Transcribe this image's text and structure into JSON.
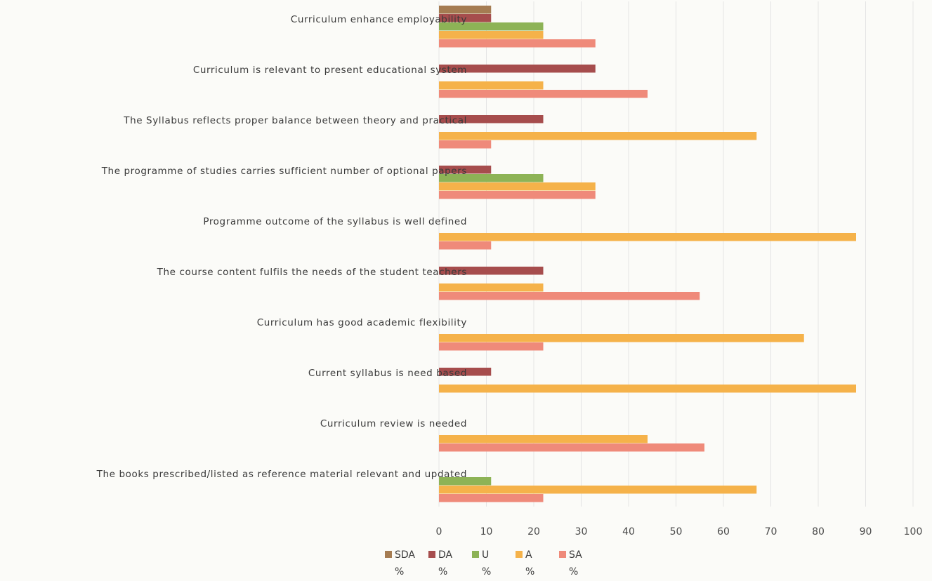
{
  "chart_data": {
    "type": "bar",
    "orientation": "horizontal",
    "categories": [
      "Curriculum enhance employability",
      "Curriculum is relevant to present educational system",
      "The Syllabus reflects proper balance between theory and practical",
      "The programme of studies carries sufficient number of optional papers",
      "Programme outcome of the syllabus is well defined",
      "The course content fulfils the needs of the student teachers",
      "Curriculum has good academic flexibility",
      "Current syllabus is need based",
      "Curriculum review is needed",
      "The books prescribed/listed as reference material relevant and updated"
    ],
    "series": [
      {
        "name": "SDA %",
        "legend_line1": "SDA",
        "legend_line2": "%",
        "color": "#a57c52",
        "values": [
          11,
          0,
          0,
          0,
          0,
          0,
          0,
          0,
          0,
          0
        ]
      },
      {
        "name": "DA %",
        "legend_line1": "DA",
        "legend_line2": "%",
        "color": "#a64d4d",
        "values": [
          11,
          33,
          22,
          11,
          0,
          22,
          0,
          11,
          0,
          0
        ]
      },
      {
        "name": "U %",
        "legend_line1": "U",
        "legend_line2": "%",
        "color": "#8db356",
        "values": [
          22,
          0,
          0,
          22,
          0,
          0,
          0,
          0,
          0,
          11
        ]
      },
      {
        "name": "A %",
        "legend_line1": "A",
        "legend_line2": "%",
        "color": "#f5b24a",
        "values": [
          22,
          22,
          67,
          33,
          88,
          22,
          77,
          88,
          44,
          67
        ]
      },
      {
        "name": "SA %",
        "legend_line1": "SA",
        "legend_line2": "%",
        "color": "#ef8a7a",
        "values": [
          33,
          44,
          11,
          33,
          11,
          55,
          22,
          0,
          56,
          22
        ]
      }
    ],
    "x_ticks": [
      "0",
      "10",
      "20",
      "30",
      "40",
      "50",
      "60",
      "70",
      "80",
      "90",
      "100"
    ],
    "xlim": [
      0,
      100
    ],
    "grid": true,
    "legend_position": "bottom",
    "title": "",
    "xlabel": "",
    "ylabel": ""
  }
}
